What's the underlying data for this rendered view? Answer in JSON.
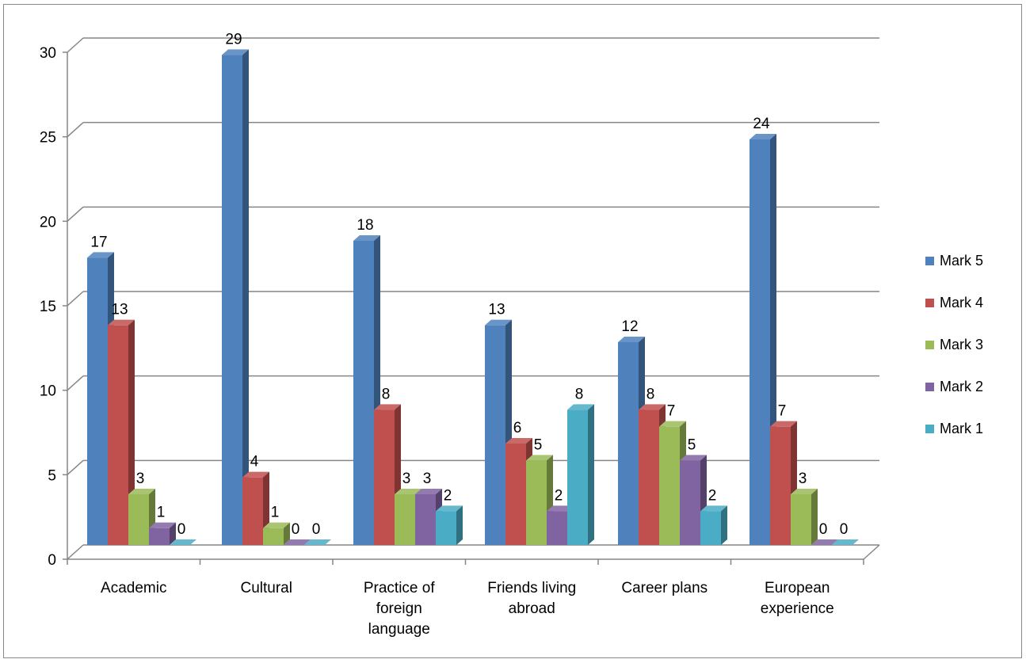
{
  "chart_data": {
    "type": "bar",
    "style": "3d-clustered-column",
    "categories": [
      [
        "Academic"
      ],
      [
        "Cultural"
      ],
      [
        "Practice of",
        "foreign",
        "language"
      ],
      [
        "Friends living",
        "abroad"
      ],
      [
        "Career plans"
      ],
      [
        "European",
        "experience"
      ]
    ],
    "series": [
      {
        "name": "Mark 5",
        "values": [
          17,
          29,
          18,
          13,
          12,
          24
        ],
        "color": "#4F81BD"
      },
      {
        "name": "Mark 4",
        "values": [
          13,
          4,
          8,
          6,
          8,
          7
        ],
        "color": "#C0504D"
      },
      {
        "name": "Mark 3",
        "values": [
          3,
          1,
          3,
          5,
          7,
          3
        ],
        "color": "#9BBB59"
      },
      {
        "name": "Mark 2",
        "values": [
          1,
          0,
          3,
          2,
          5,
          0
        ],
        "color": "#8064A2"
      },
      {
        "name": "Mark 1",
        "values": [
          0,
          0,
          2,
          8,
          2,
          0
        ],
        "color": "#4BACC6"
      }
    ],
    "ylim": [
      0,
      30
    ],
    "yticks": [
      0,
      5,
      10,
      15,
      20,
      25,
      30
    ],
    "grid": true,
    "legend_position": "right",
    "title": "",
    "xlabel": "",
    "ylabel": ""
  }
}
